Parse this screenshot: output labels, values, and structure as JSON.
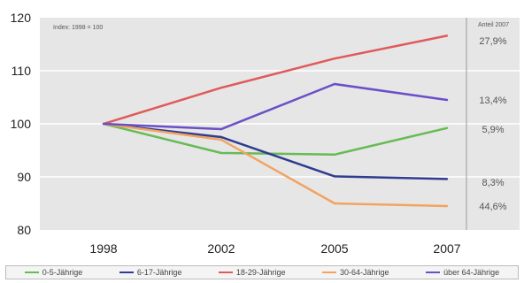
{
  "chart_data": {
    "type": "line",
    "x": [
      "1998",
      "2002",
      "2005",
      "2007"
    ],
    "ylim": [
      80,
      120
    ],
    "yticks": [
      80,
      90,
      100,
      110,
      120
    ],
    "grid": true,
    "note": "Index: 1998 = 100",
    "share_header": "Anteil 2007",
    "legend_position": "bottom",
    "series": [
      {
        "name": "0-5-Jährige",
        "color": "#66bb55",
        "values": [
          100,
          94.5,
          94.2,
          99.2
        ],
        "share": "5,9%"
      },
      {
        "name": "6-17-Jährige",
        "color": "#2f3c8f",
        "values": [
          100,
          97.5,
          90.1,
          89.6
        ],
        "share": "8,3%"
      },
      {
        "name": "18-29-Jährige",
        "color": "#e05a5a",
        "values": [
          100,
          106.8,
          112.3,
          116.6
        ],
        "share": "27,9%"
      },
      {
        "name": "30-64-Jährige",
        "color": "#f2a361",
        "values": [
          100,
          97.0,
          85.0,
          84.5
        ],
        "share": "44,6%"
      },
      {
        "name": "über 64-Jährige",
        "color": "#6a4fc7",
        "values": [
          100,
          99.0,
          107.5,
          104.5
        ],
        "share": "13,4%"
      }
    ]
  }
}
